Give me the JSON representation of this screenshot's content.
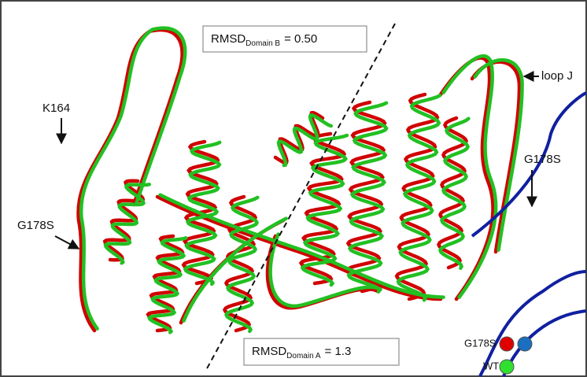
{
  "annotations": {
    "rmsd_b": {
      "main": "RMSD",
      "sub": "Domain B",
      "rest": "= 0.50"
    },
    "rmsd_a": {
      "main": "RMSD",
      "sub": "Domain A",
      "rest": "= 1.3"
    },
    "k164": "K164",
    "g178s_left": "G178S",
    "g178s_right": "G178S",
    "loop_j": "loop J"
  },
  "legend": {
    "mutant": "G178S :",
    "wild_type": "WT :"
  }
}
